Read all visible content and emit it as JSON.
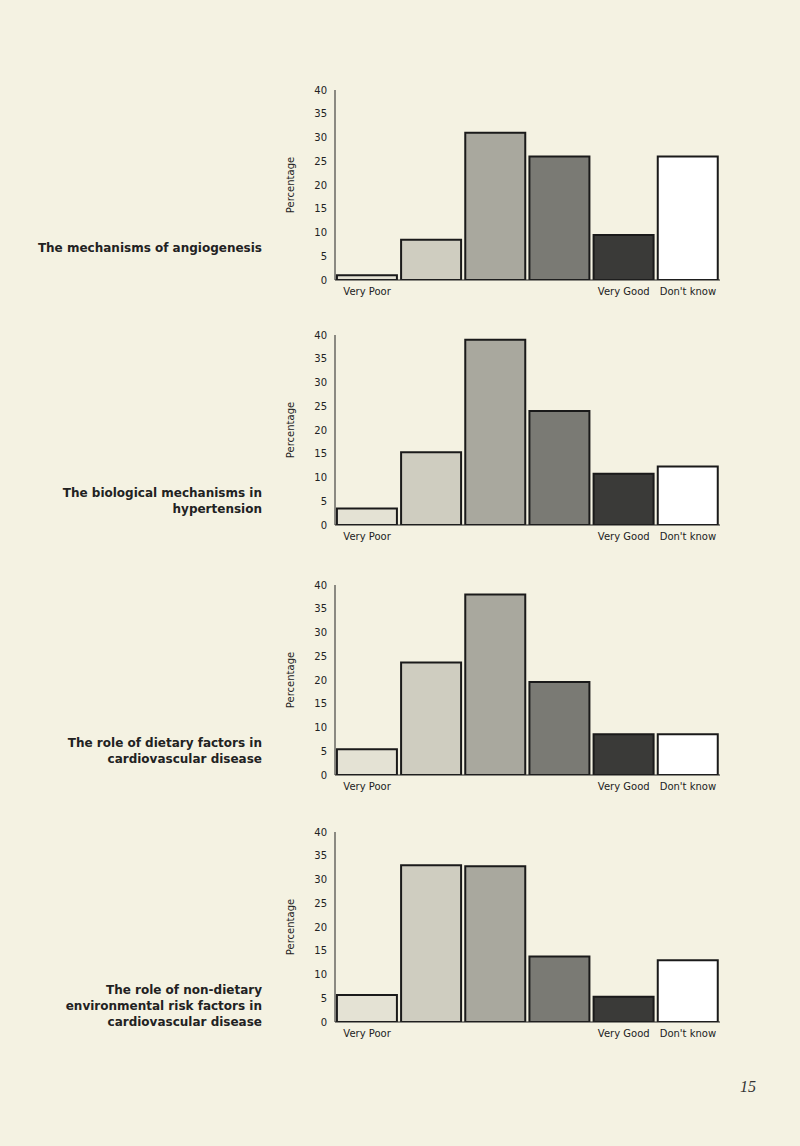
{
  "page_number": "15",
  "chart_data": [
    {
      "type": "bar",
      "title": "The mechanisms of angiogenesis",
      "ylabel": "Percentage",
      "categories": [
        "Very Poor",
        null,
        null,
        null,
        "Very Good",
        "Don't know"
      ],
      "values": [
        1,
        8.5,
        31,
        26,
        9.5,
        26
      ],
      "colors": [
        "#e4e2d4",
        "#cfcdc0",
        "#a9a89e",
        "#7a7a74",
        "#3a3a38",
        "#ffffff"
      ],
      "ylim": [
        0,
        40
      ],
      "yticks": [
        0,
        5,
        10,
        15,
        20,
        25,
        30,
        35,
        40
      ]
    },
    {
      "type": "bar",
      "title": "The biological mechanisms in hypertension",
      "ylabel": "Percentage",
      "categories": [
        "Very Poor",
        null,
        null,
        null,
        "Very Good",
        "Don't know"
      ],
      "values": [
        3.5,
        15.3,
        39,
        24,
        10.8,
        12.3
      ],
      "colors": [
        "#e4e2d4",
        "#cfcdc0",
        "#a9a89e",
        "#7a7a74",
        "#3a3a38",
        "#ffffff"
      ],
      "ylim": [
        0,
        40
      ],
      "yticks": [
        0,
        5,
        10,
        15,
        20,
        25,
        30,
        35,
        40
      ]
    },
    {
      "type": "bar",
      "title": "The role of dietary factors in cardiovascular disease",
      "ylabel": "Percentage",
      "categories": [
        "Very Poor",
        null,
        null,
        null,
        "Very Good",
        "Don't know"
      ],
      "values": [
        5.4,
        23.7,
        38,
        19.6,
        8.6,
        8.6
      ],
      "colors": [
        "#e4e2d4",
        "#cfcdc0",
        "#a9a89e",
        "#7a7a74",
        "#3a3a38",
        "#ffffff"
      ],
      "ylim": [
        0,
        40
      ],
      "yticks": [
        0,
        5,
        10,
        15,
        20,
        25,
        30,
        35,
        40
      ]
    },
    {
      "type": "bar",
      "title": "The role of non-dietary environmental risk factors in cardiovascular disease",
      "ylabel": "Percentage",
      "categories": [
        "Very Poor",
        null,
        null,
        null,
        "Very Good",
        "Don't know"
      ],
      "values": [
        5.7,
        33,
        32.8,
        13.8,
        5.3,
        13
      ],
      "colors": [
        "#e4e2d4",
        "#cfcdc0",
        "#a9a89e",
        "#7a7a74",
        "#3a3a38",
        "#ffffff"
      ],
      "ylim": [
        0,
        40
      ],
      "yticks": [
        0,
        5,
        10,
        15,
        20,
        25,
        30,
        35,
        40
      ]
    }
  ]
}
